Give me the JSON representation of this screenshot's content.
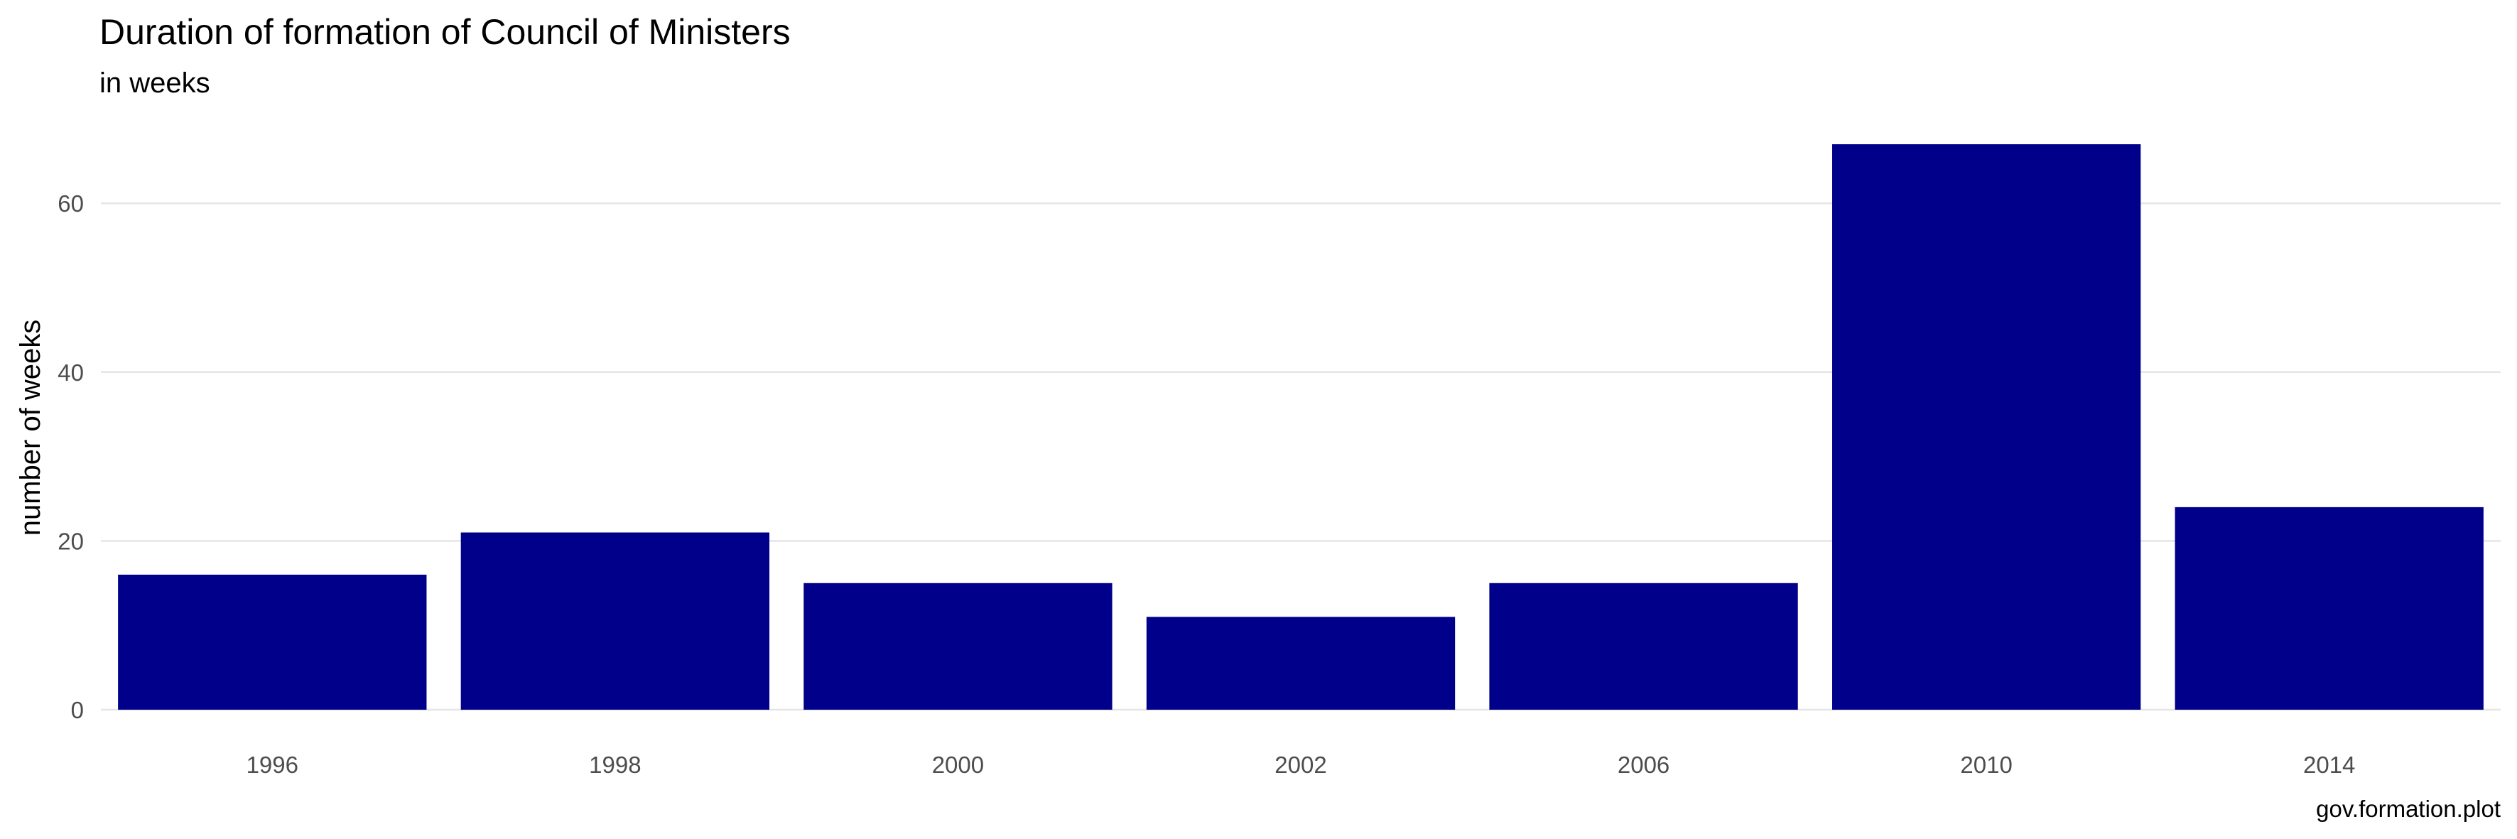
{
  "chart_data": {
    "type": "bar",
    "title": "Duration of formation of Council of Ministers",
    "subtitle": "in weeks",
    "xlabel": "",
    "ylabel": "number of weeks",
    "caption": "gov.formation.plot",
    "categories": [
      "1996",
      "1998",
      "2000",
      "2002",
      "2006",
      "2010",
      "2014"
    ],
    "values": [
      16,
      21,
      15,
      11,
      15,
      67,
      24
    ],
    "ylim": [
      0,
      70
    ],
    "yticks": [
      0,
      20,
      40,
      60
    ],
    "grid": true,
    "legend": "none",
    "bar_color": "#00008B"
  }
}
